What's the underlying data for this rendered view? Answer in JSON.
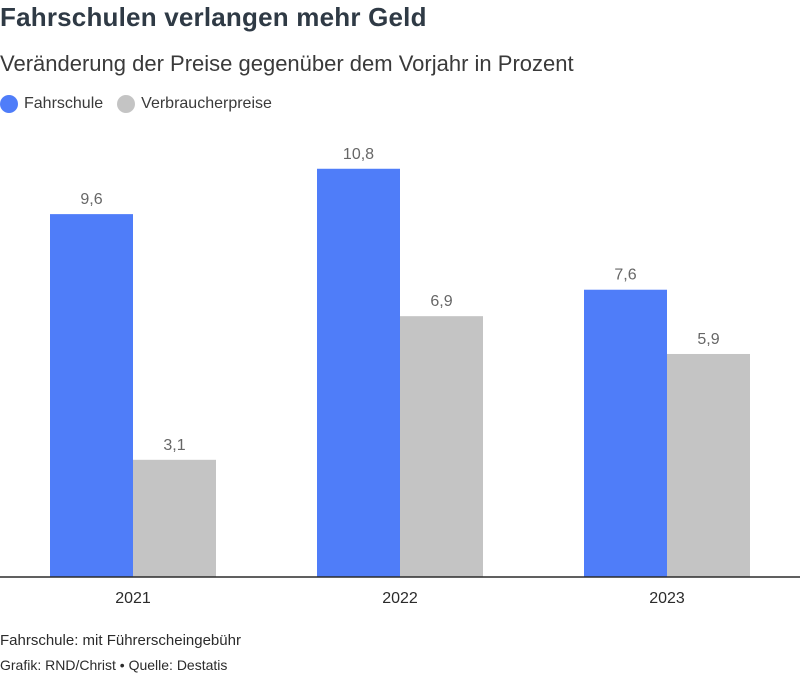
{
  "header": {
    "title": "Fahrschulen verlangen mehr Geld",
    "subtitle": "Veränderung der Preise gegenüber dem Vorjahr in Prozent"
  },
  "legend": [
    {
      "label": "Fahrschule",
      "color": "#4f7df9"
    },
    {
      "label": "Verbraucherpreise",
      "color": "#c4c4c4"
    }
  ],
  "chart_data": {
    "type": "bar",
    "title": "Fahrschulen verlangen mehr Geld",
    "subtitle": "Veränderung der Preise gegenüber dem Vorjahr in Prozent",
    "categories": [
      "2021",
      "2022",
      "2023"
    ],
    "series": [
      {
        "name": "Fahrschule",
        "values": [
          9.6,
          10.8,
          7.6
        ],
        "labels": [
          "9,6",
          "10,8",
          "7,6"
        ],
        "color": "#4f7df9"
      },
      {
        "name": "Verbraucherpreise",
        "values": [
          3.1,
          6.9,
          5.9
        ],
        "labels": [
          "3,1",
          "6,9",
          "5,9"
        ],
        "color": "#c4c4c4"
      }
    ],
    "xlabel": "",
    "ylabel": "",
    "ylim": [
      0,
      12
    ],
    "grid": false,
    "legend_position": "top-left"
  },
  "footer": {
    "note": "Fahrschule: mit Führerscheingebühr",
    "credit": "Grafik: RND/Christ • Quelle: Destatis"
  }
}
